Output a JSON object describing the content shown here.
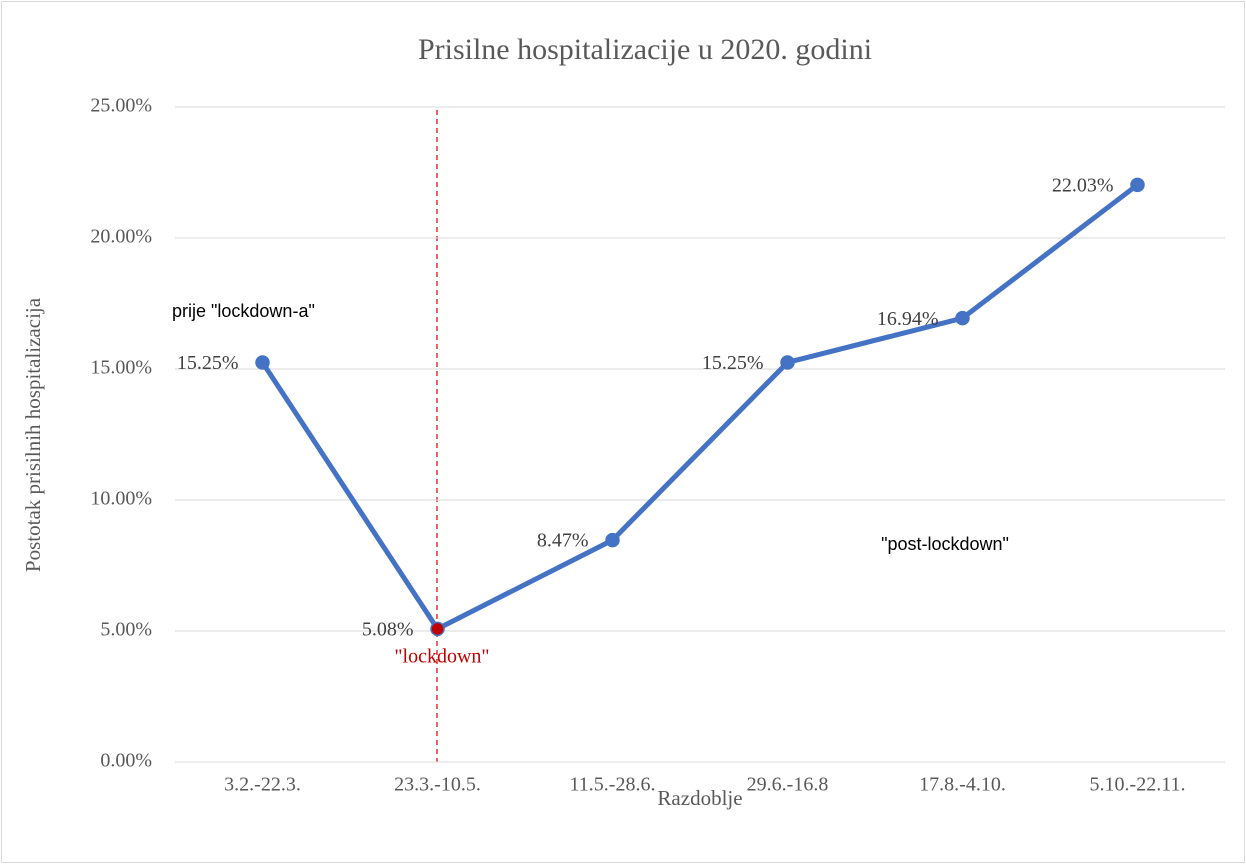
{
  "chart_data": {
    "type": "line",
    "title": "Prisilne hospitalizacije u 2020. godini",
    "x_label": "Razdoblje",
    "y_label": "Postotak prisilnih hospitalizacija",
    "categories": [
      "3.2.-22.3.",
      "23.3.-10.5.",
      "11.5.-28.6.",
      "29.6.-16.8",
      "17.8.-4.10.",
      "5.10.-22.11."
    ],
    "series": [
      {
        "name": "Postotak prisilnih hospitalizacija",
        "color": "#4472c4",
        "point_colors": [
          "#4472c4",
          "#c00000",
          "#4472c4",
          "#4472c4",
          "#4472c4",
          "#4472c4"
        ],
        "values": [
          15.25,
          5.08,
          8.47,
          15.25,
          16.94,
          22.03
        ],
        "value_labels": [
          "15.25%",
          "5.08%",
          "8.47%",
          "15.25%",
          "16.94%",
          "22.03%"
        ]
      }
    ],
    "ylim": [
      0,
      25
    ],
    "yticks": [
      {
        "value": 0,
        "label": "0.00%"
      },
      {
        "value": 5,
        "label": "5.00%"
      },
      {
        "value": 10,
        "label": "10.00%"
      },
      {
        "value": 15,
        "label": "15.00%"
      },
      {
        "value": 20,
        "label": "20.00%"
      },
      {
        "value": 25,
        "label": "25.00%"
      }
    ],
    "grid": true,
    "annotations": [
      {
        "text": "prije \"lockdown-a\"",
        "color": "#000000"
      },
      {
        "text": "\"lockdown\"",
        "color": "#c00000"
      },
      {
        "text": "\"post-lockdown\"",
        "color": "#000000"
      }
    ]
  }
}
